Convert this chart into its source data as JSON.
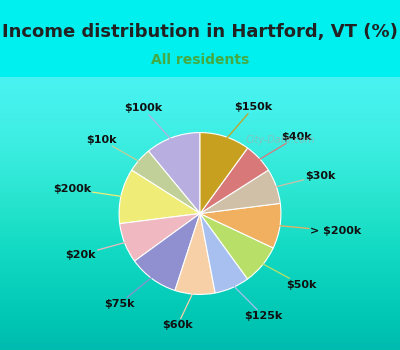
{
  "title": "Income distribution in Hartford, VT (%)",
  "subtitle": "All residents",
  "bg_cyan": "#00EFEF",
  "chart_bg_grad_top": "#e8f5f0",
  "chart_bg_grad_bottom": "#d0ead8",
  "labels": [
    "$100k",
    "$10k",
    "$200k",
    "$20k",
    "$75k",
    "$60k",
    "$125k",
    "$50k",
    "> $200k",
    "$30k",
    "$40k",
    "$150k"
  ],
  "values": [
    11,
    5,
    11,
    8,
    10,
    8,
    7,
    8,
    9,
    7,
    6,
    10
  ],
  "colors": [
    "#b8aee0",
    "#c0d098",
    "#f0ec78",
    "#f0b8c0",
    "#9090d0",
    "#f8d0a8",
    "#a8c0f0",
    "#b8e068",
    "#f0b060",
    "#d0c0a8",
    "#d87878",
    "#c8a020"
  ],
  "start_angle": 90,
  "label_fontsize": 8,
  "title_fontsize": 13,
  "subtitle_fontsize": 10,
  "subtitle_color": "#44aa44",
  "watermark": "City-Data.com"
}
